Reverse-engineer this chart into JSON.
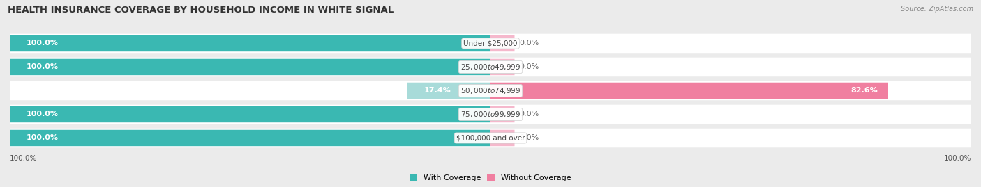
{
  "title": "HEALTH INSURANCE COVERAGE BY HOUSEHOLD INCOME IN WHITE SIGNAL",
  "source": "Source: ZipAtlas.com",
  "categories": [
    "Under $25,000",
    "$25,000 to $49,999",
    "$50,000 to $74,999",
    "$75,000 to $99,999",
    "$100,000 and over"
  ],
  "with_coverage": [
    100.0,
    100.0,
    17.4,
    100.0,
    100.0
  ],
  "without_coverage": [
    0.0,
    0.0,
    82.6,
    0.0,
    0.0
  ],
  "color_with": "#3ab8b2",
  "color_without": "#f07fa0",
  "color_with_light": "#a8dbd9",
  "color_without_light": "#f5b8cc",
  "background_color": "#ebebeb",
  "bar_bg_color": "#ffffff",
  "title_fontsize": 9.5,
  "source_fontsize": 7,
  "label_fontsize": 8,
  "tick_fontsize": 7.5,
  "legend_fontsize": 8,
  "x_left_label": "100.0%",
  "x_right_label": "100.0%"
}
